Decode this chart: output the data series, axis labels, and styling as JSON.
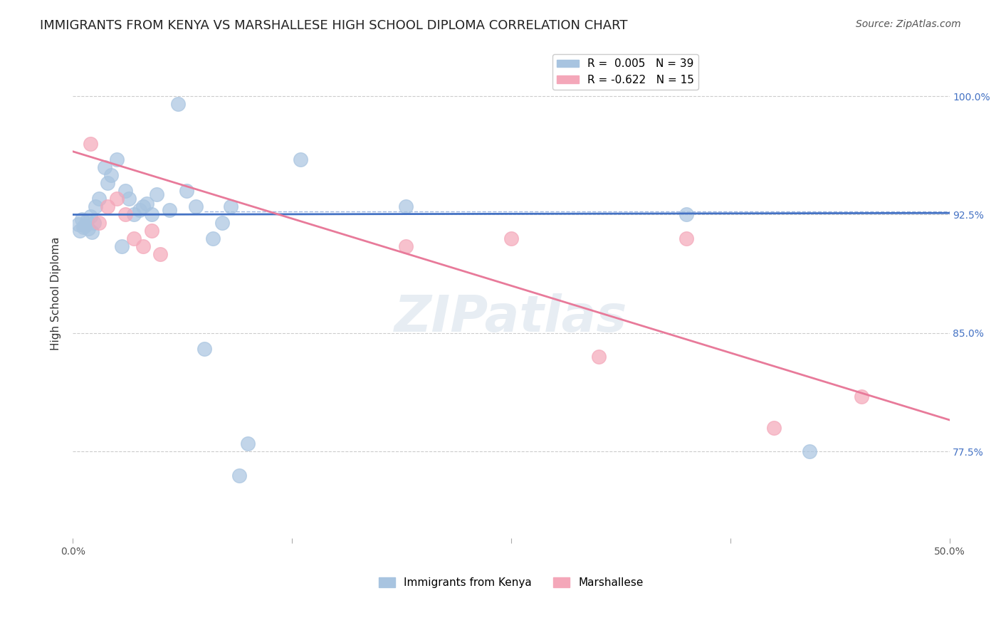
{
  "title": "IMMIGRANTS FROM KENYA VS MARSHALLESE HIGH SCHOOL DIPLOMA CORRELATION CHART",
  "source": "Source: ZipAtlas.com",
  "ylabel_label": "High School Diploma",
  "xlim": [
    0.0,
    0.5
  ],
  "ylim": [
    0.72,
    1.03
  ],
  "xtick_positions": [
    0.0,
    0.125,
    0.25,
    0.375,
    0.5
  ],
  "xtick_labels": [
    "0.0%",
    "",
    "",
    "",
    "50.0%"
  ],
  "ytick_labels": [
    "77.5%",
    "85.0%",
    "92.5%",
    "100.0%"
  ],
  "ytick_positions": [
    0.775,
    0.85,
    0.925,
    1.0
  ],
  "legend_r1": "R =  0.005   N = 39",
  "legend_r2": "R = -0.622   N = 15",
  "kenya_color": "#a8c4e0",
  "marsh_color": "#f4a7b9",
  "kenya_line_color": "#4472c4",
  "marsh_line_color": "#e87a9a",
  "kenya_scatter_x": [
    0.01,
    0.005,
    0.008,
    0.012,
    0.003,
    0.007,
    0.006,
    0.009,
    0.004,
    0.011,
    0.015,
    0.02,
    0.025,
    0.018,
    0.013,
    0.022,
    0.03,
    0.035,
    0.028,
    0.032,
    0.04,
    0.045,
    0.038,
    0.042,
    0.048,
    0.055,
    0.06,
    0.065,
    0.07,
    0.075,
    0.08,
    0.085,
    0.09,
    0.095,
    0.1,
    0.13,
    0.19,
    0.35,
    0.42
  ],
  "kenya_scatter_y": [
    0.924,
    0.922,
    0.921,
    0.92,
    0.919,
    0.918,
    0.917,
    0.916,
    0.915,
    0.914,
    0.935,
    0.945,
    0.96,
    0.955,
    0.93,
    0.95,
    0.94,
    0.925,
    0.905,
    0.935,
    0.93,
    0.925,
    0.928,
    0.932,
    0.938,
    0.928,
    0.995,
    0.94,
    0.93,
    0.84,
    0.91,
    0.92,
    0.93,
    0.76,
    0.78,
    0.96,
    0.93,
    0.925,
    0.775
  ],
  "marsh_scatter_x": [
    0.01,
    0.015,
    0.02,
    0.025,
    0.03,
    0.035,
    0.04,
    0.045,
    0.05,
    0.19,
    0.25,
    0.3,
    0.35,
    0.4,
    0.45
  ],
  "marsh_scatter_y": [
    0.97,
    0.92,
    0.93,
    0.935,
    0.925,
    0.91,
    0.905,
    0.915,
    0.9,
    0.905,
    0.91,
    0.835,
    0.91,
    0.79,
    0.81
  ],
  "kenya_line_x": [
    0.0,
    0.5
  ],
  "kenya_line_y": [
    0.925,
    0.926
  ],
  "marsh_line_x": [
    0.0,
    0.5
  ],
  "marsh_line_y": [
    0.965,
    0.795
  ],
  "dashed_line_y": 0.927,
  "watermark": "ZIPatlas",
  "background_color": "#ffffff",
  "grid_color": "#cccccc",
  "title_fontsize": 13,
  "axis_label_fontsize": 11,
  "tick_fontsize": 10,
  "legend_fontsize": 11,
  "source_fontsize": 10,
  "bottom_legend_labels": [
    "Immigrants from Kenya",
    "Marshallese"
  ]
}
